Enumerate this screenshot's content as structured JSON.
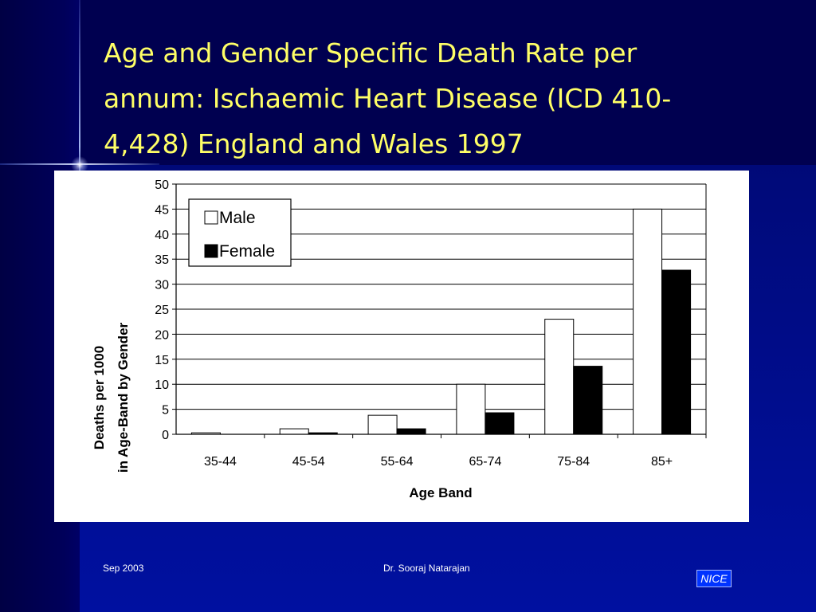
{
  "slide": {
    "title_line1": "Age and Gender Specific Death Rate per",
    "title_line2": "annum: Ischaemic Heart Disease (ICD 410-",
    "title_line3": "4,428) England and Wales 1997",
    "footer_date": "Sep 2003",
    "footer_author": "Dr. Sooraj Natarajan",
    "logo_text": "NICE"
  },
  "colors": {
    "background": "#000066",
    "title": "#ffff66",
    "male_fill": "#ffffff",
    "female_fill": "#000000",
    "logo_bg": "#0033ff"
  },
  "chart_data": {
    "type": "bar",
    "title": "",
    "xlabel": "Age Band",
    "ylabel_line1": "Deaths per 1000",
    "ylabel_line2": "in Age-Band by Gender",
    "categories": [
      "35-44",
      "45-54",
      "55-64",
      "65-74",
      "75-84",
      "85+"
    ],
    "series": [
      {
        "name": "Male",
        "values": [
          0.3,
          1.1,
          3.8,
          10.0,
          23.0,
          45.0
        ]
      },
      {
        "name": "Female",
        "values": [
          0.0,
          0.3,
          1.1,
          4.3,
          13.6,
          32.8
        ]
      }
    ],
    "ylim": [
      0,
      50
    ],
    "yticks": [
      "0",
      "5",
      "10",
      "15",
      "20",
      "25",
      "30",
      "35",
      "40",
      "45",
      "50"
    ],
    "grid": true,
    "legend_position": "top-left"
  }
}
